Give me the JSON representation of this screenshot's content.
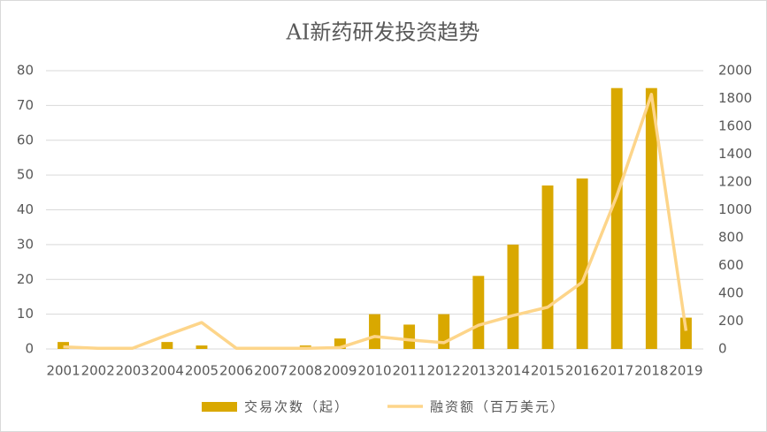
{
  "chart_data": {
    "type": "bar-line",
    "title": "AI新药研发投资趋势",
    "categories": [
      "2001",
      "2002",
      "2003",
      "2004",
      "2005",
      "2006",
      "2007",
      "2008",
      "2009",
      "2010",
      "2011",
      "2012",
      "2013",
      "2014",
      "2015",
      "2016",
      "2017",
      "2018",
      "2019"
    ],
    "series": [
      {
        "name": "交易次数（起）",
        "type": "bar",
        "color": "#d9a800",
        "values": [
          2,
          0,
          0,
          2,
          1,
          0,
          0,
          1,
          3,
          10,
          7,
          10,
          21,
          30,
          47,
          49,
          75,
          75,
          9
        ]
      },
      {
        "name": "融资额（百万美元）",
        "type": "line",
        "axis": "y2",
        "color": "#fdd58a",
        "values": [
          15,
          5,
          5,
          100,
          190,
          5,
          5,
          5,
          10,
          90,
          65,
          45,
          170,
          240,
          300,
          480,
          1100,
          1830,
          130
        ]
      }
    ],
    "ylim": [
      0,
      80
    ],
    "yticks": [
      0,
      10,
      20,
      30,
      40,
      50,
      60,
      70,
      80
    ],
    "y2lim": [
      0,
      2000
    ],
    "y2ticks": [
      0,
      200,
      400,
      600,
      800,
      1000,
      1200,
      1400,
      1600,
      1800,
      2000
    ],
    "grid": true,
    "legend": "bottom"
  }
}
